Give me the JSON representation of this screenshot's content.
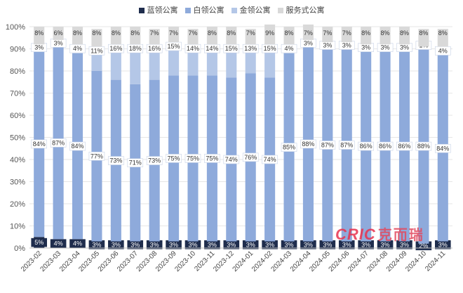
{
  "chart_data": {
    "type": "bar",
    "stacked": true,
    "percent": true,
    "categories": [
      "2023-02",
      "2023-03",
      "2023-04",
      "2023-05",
      "2023-06",
      "2023-07",
      "2023-08",
      "2023-09",
      "2023-10",
      "2023-11",
      "2023-12",
      "2024-01",
      "2024-02",
      "2024-03",
      "2024-04",
      "2024-05",
      "2024-06",
      "2024-07",
      "2024-08",
      "2024-09",
      "2024-10",
      "2024-11"
    ],
    "series": [
      {
        "name": "蓝领公寓",
        "color": "#1f2d4d",
        "values": [
          5,
          4,
          4,
          3,
          3,
          3,
          3,
          3,
          3,
          3,
          3,
          3,
          3,
          3,
          3,
          3,
          3,
          3,
          3,
          3,
          2,
          3
        ]
      },
      {
        "name": "白领公寓",
        "color": "#8eaadb",
        "values": [
          84,
          87,
          84,
          77,
          73,
          71,
          73,
          75,
          75,
          75,
          74,
          76,
          74,
          85,
          88,
          87,
          87,
          86,
          86,
          86,
          88,
          84
        ]
      },
      {
        "name": "金领公寓",
        "color": "#b4c7e7",
        "values": [
          3,
          3,
          4,
          11,
          16,
          18,
          16,
          15,
          14,
          14,
          15,
          13,
          15,
          4,
          3,
          3,
          3,
          3,
          3,
          3,
          1,
          4
        ]
      },
      {
        "name": "服务式公寓",
        "color": "#d9d9d9",
        "values": [
          8,
          6,
          8,
          8,
          8,
          8,
          7,
          7,
          7,
          8,
          8,
          7,
          9,
          8,
          7,
          7,
          7,
          8,
          8,
          8,
          8,
          8
        ]
      }
    ],
    "ylim": [
      0,
      100
    ],
    "yticks": [
      "0%",
      "10%",
      "20%",
      "30%",
      "40%",
      "50%",
      "60%",
      "70%",
      "80%",
      "90%",
      "100%"
    ],
    "grid": true,
    "legend": "top-center"
  },
  "watermark": {
    "brand": "CRIC",
    "cn": "克而瑞"
  }
}
